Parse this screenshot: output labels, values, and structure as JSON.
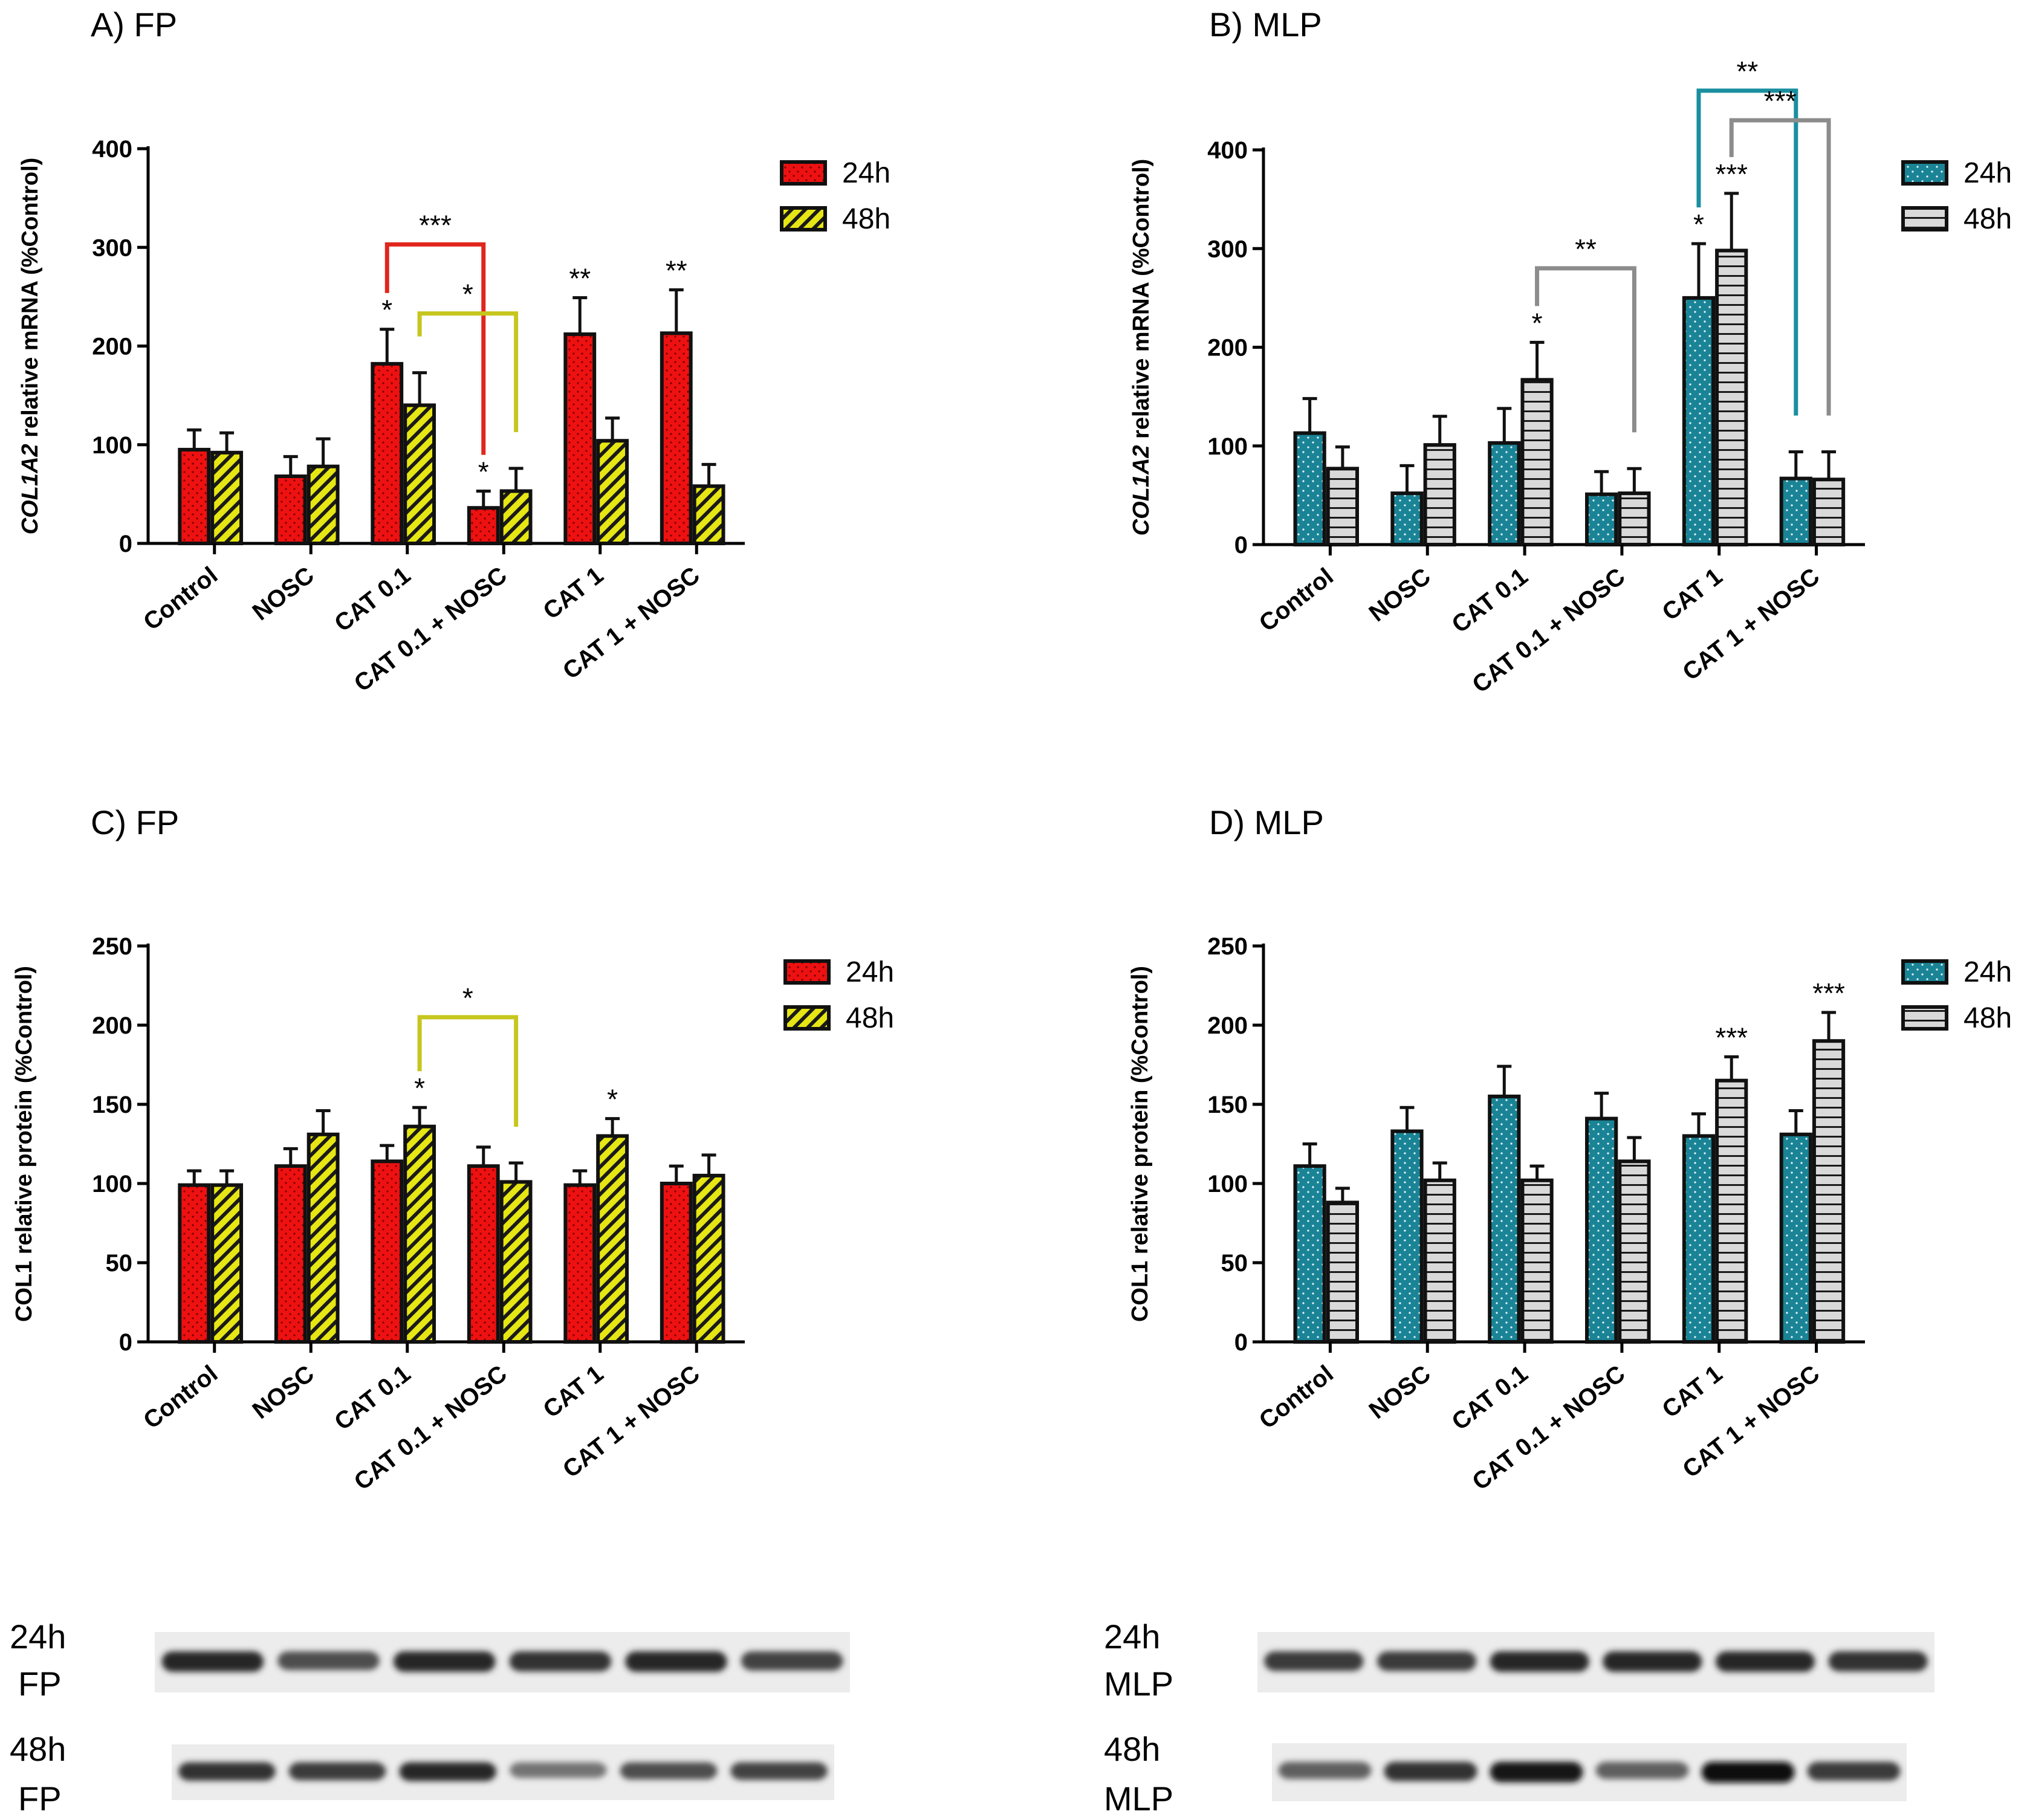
{
  "colors": {
    "fp_24h": "#ee1111",
    "fp_48h": "#e6e614",
    "mlp_24h": "#1a8496",
    "mlp_48h": "#d9d9d9",
    "red_bracket": "#e0261d",
    "yellow_bracket": "#c6c61e",
    "teal_bracket": "#1a8fa0",
    "gray_bracket": "#8c8c8c"
  },
  "chart_data": [
    {
      "type": "bar",
      "title": "A) FP",
      "ylabel_italic": "COL1A2",
      "ylabel_rest": " relative mRNA (%Control)",
      "ylim": [
        0,
        400
      ],
      "yticks": [
        0,
        100,
        200,
        300,
        400
      ],
      "categories": [
        "Control",
        "NOSC",
        "CAT 0.1",
        "CAT 0.1 + NOSC",
        "CAT 1",
        "CAT 1 + NOSC"
      ],
      "series": [
        {
          "name": "24h",
          "values": [
            95,
            68,
            182,
            36,
            212,
            213
          ],
          "errors": [
            20,
            20,
            35,
            17,
            37,
            44
          ],
          "stars": [
            "",
            "",
            "*",
            "*",
            "**",
            "**"
          ]
        },
        {
          "name": "48h",
          "values": [
            92,
            78,
            140,
            53,
            104,
            58
          ],
          "errors": [
            20,
            28,
            33,
            23,
            23,
            22
          ],
          "stars": [
            "",
            "",
            "",
            "",
            "",
            ""
          ]
        }
      ],
      "brackets": [
        {
          "from": [
            2,
            0
          ],
          "to": [
            3,
            0
          ],
          "label": "***",
          "color": "red",
          "top": 303
        },
        {
          "from": [
            2,
            1
          ],
          "to": [
            3,
            1
          ],
          "label": "*",
          "color": "yellow",
          "top": 233
        }
      ]
    },
    {
      "type": "bar",
      "title": "B) MLP",
      "ylabel_italic": "COL1A2",
      "ylabel_rest": " relative mRNA (%Control)",
      "ylim": [
        0,
        400
      ],
      "yticks": [
        0,
        100,
        200,
        300,
        400
      ],
      "categories": [
        "Control",
        "NOSC",
        "CAT 0.1",
        "CAT 0.1 + NOSC",
        "CAT 1",
        "CAT 1 + NOSC"
      ],
      "series": [
        {
          "name": "24h",
          "values": [
            113,
            52,
            103,
            51,
            250,
            67
          ],
          "errors": [
            35,
            28,
            35,
            23,
            55,
            27
          ],
          "stars": [
            "",
            "",
            "",
            "",
            "*",
            ""
          ]
        },
        {
          "name": "48h",
          "values": [
            77,
            101,
            167,
            52,
            298,
            66
          ],
          "errors": [
            22,
            29,
            38,
            25,
            58,
            28
          ],
          "stars": [
            "",
            "",
            "*",
            "",
            "***",
            ""
          ]
        }
      ],
      "brackets": [
        {
          "from": [
            2,
            1
          ],
          "to": [
            3,
            1
          ],
          "label": "**",
          "color": "gray",
          "top": 280
        },
        {
          "from": [
            4,
            0
          ],
          "to": [
            5,
            0
          ],
          "label": "**",
          "color": "teal",
          "top": 460
        },
        {
          "from": [
            4,
            1
          ],
          "to": [
            5,
            1
          ],
          "label": "***",
          "color": "gray",
          "top": 430
        }
      ]
    },
    {
      "type": "bar",
      "title": "C) FP",
      "ylabel_italic": "",
      "ylabel_rest": "COL1 relative protein (%Control)",
      "ylim": [
        0,
        250
      ],
      "yticks": [
        0,
        50,
        100,
        150,
        200,
        250
      ],
      "categories": [
        "Control",
        "NOSC",
        "CAT 0.1",
        "CAT 0.1 + NOSC",
        "CAT 1",
        "CAT 1 + NOSC"
      ],
      "series": [
        {
          "name": "24h",
          "values": [
            99,
            111,
            114,
            111,
            99,
            100
          ],
          "errors": [
            9,
            11,
            10,
            12,
            9,
            11
          ],
          "stars": [
            "",
            "",
            "",
            "",
            "",
            ""
          ]
        },
        {
          "name": "48h",
          "values": [
            99,
            131,
            136,
            101,
            130,
            105
          ],
          "errors": [
            9,
            15,
            12,
            12,
            11,
            13
          ],
          "stars": [
            "",
            "",
            "*",
            "",
            "*",
            ""
          ]
        }
      ],
      "brackets": [
        {
          "from": [
            2,
            1
          ],
          "to": [
            3,
            1
          ],
          "label": "*",
          "color": "yellow",
          "top": 205
        }
      ]
    },
    {
      "type": "bar",
      "title": "D) MLP",
      "ylabel_italic": "",
      "ylabel_rest": "COL1 relative protein (%Control)",
      "ylim": [
        0,
        250
      ],
      "yticks": [
        0,
        50,
        100,
        150,
        200,
        250
      ],
      "categories": [
        "Control",
        "NOSC",
        "CAT 0.1",
        "CAT 0.1 + NOSC",
        "CAT 1",
        "CAT 1 + NOSC"
      ],
      "series": [
        {
          "name": "24h",
          "values": [
            111,
            133,
            155,
            141,
            130,
            131
          ],
          "errors": [
            14,
            15,
            19,
            16,
            14,
            15
          ],
          "stars": [
            "",
            "",
            "",
            "",
            "",
            ""
          ]
        },
        {
          "name": "48h",
          "values": [
            88,
            102,
            102,
            114,
            165,
            190
          ],
          "errors": [
            9,
            11,
            9,
            15,
            15,
            18
          ],
          "stars": [
            "",
            "",
            "",
            "",
            "***",
            "***"
          ]
        }
      ],
      "brackets": []
    }
  ],
  "blots": {
    "fp": {
      "row1_time": "24h",
      "row1_cell": "FP",
      "row2_time": "48h",
      "row2_cell": "FP",
      "row1_intensity": [
        0.85,
        0.65,
        0.85,
        0.8,
        0.85,
        0.7
      ],
      "row2_intensity": [
        0.8,
        0.75,
        0.85,
        0.45,
        0.65,
        0.7
      ]
    },
    "mlp": {
      "row1_time": "24h",
      "row1_cell": "MLP",
      "row2_time": "48h",
      "row2_cell": "MLP",
      "row1_intensity": [
        0.75,
        0.75,
        0.85,
        0.85,
        0.85,
        0.8
      ],
      "row2_intensity": [
        0.55,
        0.8,
        0.95,
        0.55,
        1.0,
        0.75
      ]
    }
  }
}
